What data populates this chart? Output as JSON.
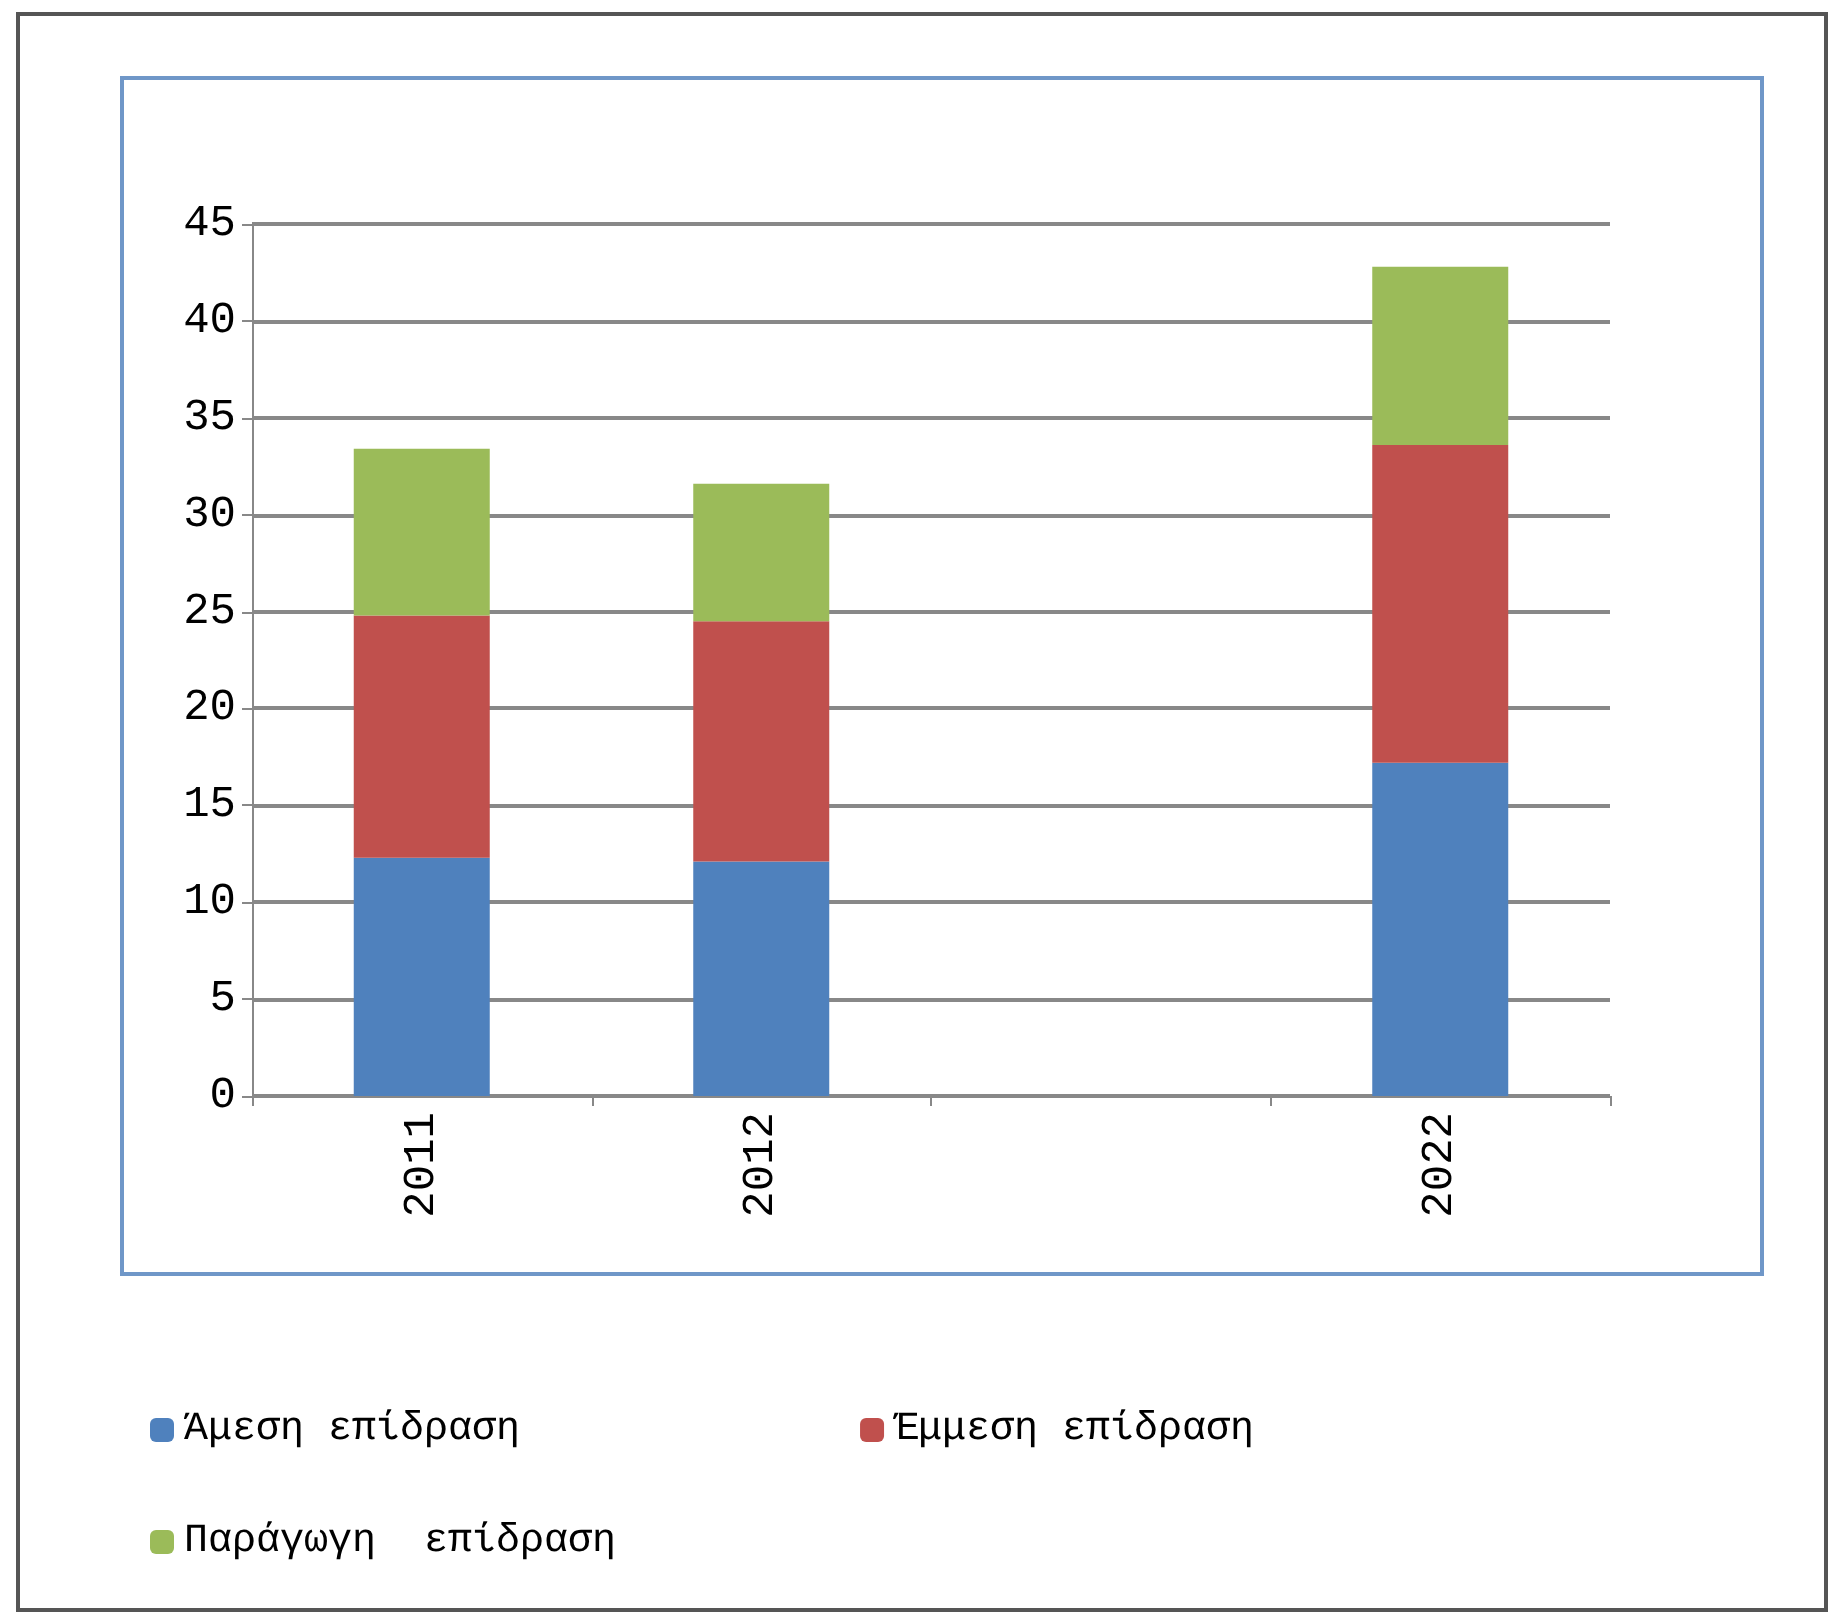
{
  "chart_data": {
    "type": "bar",
    "stacked": true,
    "categories": [
      "2011",
      "2012",
      null,
      "2022"
    ],
    "series": [
      {
        "name": "Άμεση επίδραση",
        "color": "#4f81bd",
        "values": [
          12.3,
          12.1,
          null,
          17.2
        ]
      },
      {
        "name": "Έμμεση επίδραση",
        "color": "#c0504d",
        "values": [
          12.5,
          12.4,
          null,
          16.4
        ]
      },
      {
        "name": "Παράγωγη  επίδραση",
        "color": "#9bbb59",
        "values": [
          8.6,
          7.1,
          null,
          9.2
        ]
      }
    ],
    "ylim": [
      0,
      45
    ],
    "yticks": [
      0,
      5,
      10,
      15,
      20,
      25,
      30,
      35,
      40,
      45
    ],
    "grid": true,
    "legend": "bottom"
  }
}
